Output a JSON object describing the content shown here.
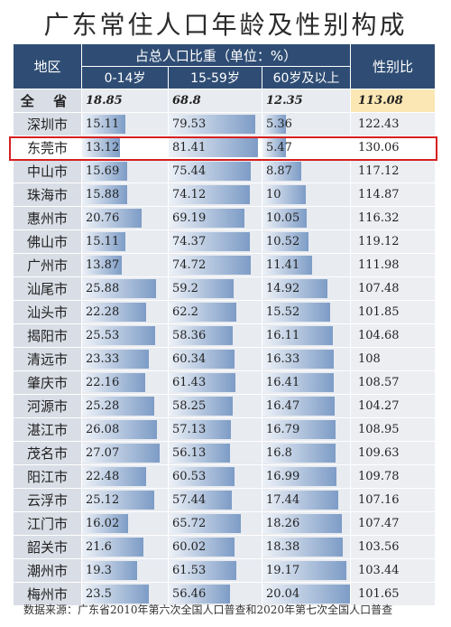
{
  "title": "广东常住人口年龄及性别构成",
  "header": {
    "region": "地区",
    "group": "占总人口比重（单位：%）",
    "age_0_14": "0-14岁",
    "age_15_59": "15-59岁",
    "age_60": "60岁及以上",
    "sex_ratio": "性别比"
  },
  "source": "数据来源：广东省2010年第六次全国人口普查和2020年第七次全国人口普查",
  "highlight_row": "东莞市",
  "colors": {
    "header": "#2f4d74",
    "highlight": "#d62020",
    "bar": "#7d9cc6"
  },
  "chart_data": {
    "type": "table",
    "title": "广东常住人口年龄及性别构成",
    "columns": [
      "地区",
      "0-14岁",
      "15-59岁",
      "60岁及以上",
      "性别比"
    ],
    "rows": [
      {
        "region": "全 省",
        "age_0_14": "18.85",
        "age_15_59": "68.8",
        "age_60": "12.35",
        "sex_ratio": "113.08"
      },
      {
        "region": "深圳市",
        "age_0_14": "15.11",
        "age_15_59": "79.53",
        "age_60": "5.36",
        "sex_ratio": "122.43"
      },
      {
        "region": "东莞市",
        "age_0_14": "13.12",
        "age_15_59": "81.41",
        "age_60": "5.47",
        "sex_ratio": "130.06"
      },
      {
        "region": "中山市",
        "age_0_14": "15.69",
        "age_15_59": "75.44",
        "age_60": "8.87",
        "sex_ratio": "117.12"
      },
      {
        "region": "珠海市",
        "age_0_14": "15.88",
        "age_15_59": "74.12",
        "age_60": "10",
        "sex_ratio": "114.87"
      },
      {
        "region": "惠州市",
        "age_0_14": "20.76",
        "age_15_59": "69.19",
        "age_60": "10.05",
        "sex_ratio": "116.32"
      },
      {
        "region": "佛山市",
        "age_0_14": "15.11",
        "age_15_59": "74.37",
        "age_60": "10.52",
        "sex_ratio": "119.12"
      },
      {
        "region": "广州市",
        "age_0_14": "13.87",
        "age_15_59": "74.72",
        "age_60": "11.41",
        "sex_ratio": "111.98"
      },
      {
        "region": "汕尾市",
        "age_0_14": "25.88",
        "age_15_59": "59.2",
        "age_60": "14.92",
        "sex_ratio": "107.48"
      },
      {
        "region": "汕头市",
        "age_0_14": "22.28",
        "age_15_59": "62.2",
        "age_60": "15.52",
        "sex_ratio": "101.85"
      },
      {
        "region": "揭阳市",
        "age_0_14": "25.53",
        "age_15_59": "58.36",
        "age_60": "16.11",
        "sex_ratio": "104.68"
      },
      {
        "region": "清远市",
        "age_0_14": "23.33",
        "age_15_59": "60.34",
        "age_60": "16.33",
        "sex_ratio": "108"
      },
      {
        "region": "肇庆市",
        "age_0_14": "22.16",
        "age_15_59": "61.43",
        "age_60": "16.41",
        "sex_ratio": "108.57"
      },
      {
        "region": "河源市",
        "age_0_14": "25.28",
        "age_15_59": "58.25",
        "age_60": "16.47",
        "sex_ratio": "104.27"
      },
      {
        "region": "湛江市",
        "age_0_14": "26.08",
        "age_15_59": "57.13",
        "age_60": "16.79",
        "sex_ratio": "108.95"
      },
      {
        "region": "茂名市",
        "age_0_14": "27.07",
        "age_15_59": "56.13",
        "age_60": "16.8",
        "sex_ratio": "109.63"
      },
      {
        "region": "阳江市",
        "age_0_14": "22.48",
        "age_15_59": "60.53",
        "age_60": "16.99",
        "sex_ratio": "109.78"
      },
      {
        "region": "云浮市",
        "age_0_14": "25.12",
        "age_15_59": "57.44",
        "age_60": "17.44",
        "sex_ratio": "107.16"
      },
      {
        "region": "江门市",
        "age_0_14": "16.02",
        "age_15_59": "65.72",
        "age_60": "18.26",
        "sex_ratio": "107.47"
      },
      {
        "region": "韶关市",
        "age_0_14": "21.6",
        "age_15_59": "60.02",
        "age_60": "18.38",
        "sex_ratio": "103.56"
      },
      {
        "region": "潮州市",
        "age_0_14": "19.3",
        "age_15_59": "61.53",
        "age_60": "19.17",
        "sex_ratio": "103.44"
      },
      {
        "region": "梅州市",
        "age_0_14": "23.5",
        "age_15_59": "56.46",
        "age_60": "20.04",
        "sex_ratio": "101.65"
      }
    ],
    "bar_max": {
      "age_0_14": 30,
      "age_15_59": 85,
      "age_60": 20.04
    }
  }
}
